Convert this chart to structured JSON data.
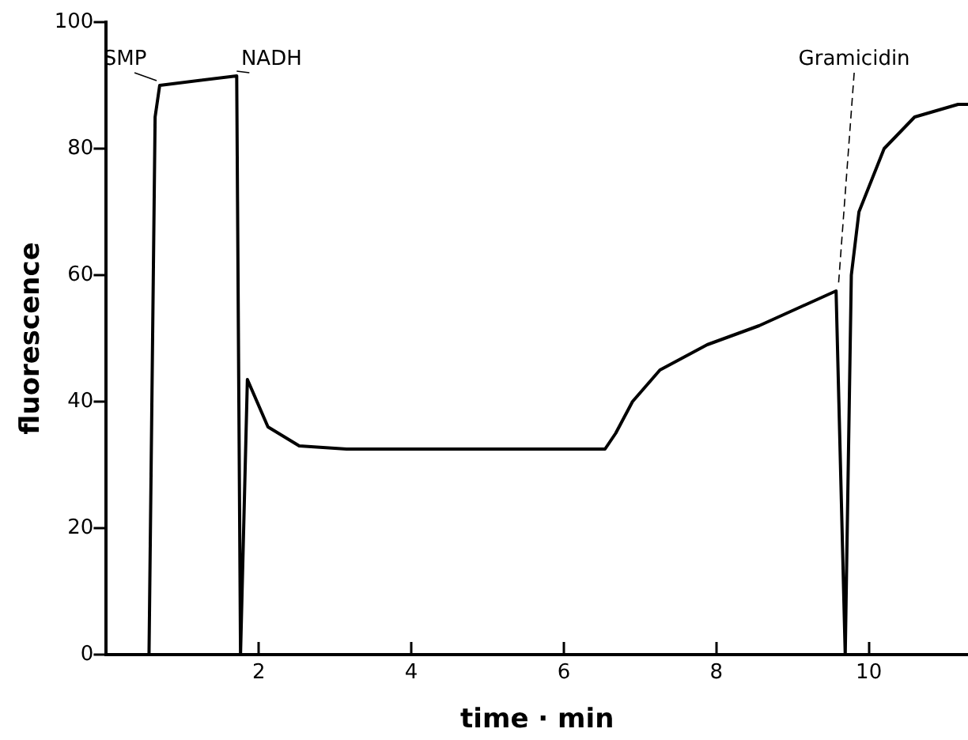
{
  "chart_data": {
    "type": "line",
    "xlabel": "time · min",
    "ylabel": "fluorescence",
    "x": [
      0.56,
      0.64,
      0.7,
      1.71,
      1.76,
      1.85,
      2.12,
      2.53,
      3.15,
      6.54,
      6.68,
      6.9,
      7.26,
      7.88,
      8.56,
      9.11,
      9.57,
      9.69,
      9.77,
      9.87,
      10.2,
      10.6,
      11.17,
      11.3
    ],
    "values": [
      0,
      85,
      90,
      91.5,
      0,
      43.5,
      36,
      33,
      32.5,
      32.5,
      35,
      40,
      45,
      49,
      52,
      55,
      57.5,
      0,
      60,
      70,
      80,
      85,
      87,
      87
    ],
    "color": "#000000",
    "xlim": [
      0,
      11.3
    ],
    "xticks": [
      2,
      4,
      6,
      8,
      10
    ],
    "ylim": [
      0,
      100
    ],
    "yticks": [
      0,
      20,
      40,
      60,
      80,
      100
    ],
    "annotations": [
      {
        "text": "SMP",
        "x": 0.66,
        "y": 90
      },
      {
        "text": "NADH",
        "x": 1.71,
        "y": 91.5
      },
      {
        "text": "Gramicidin",
        "x": 9.6,
        "y": 57.5
      }
    ],
    "grid": false,
    "legend": false,
    "marker": "none",
    "line_style": "solid"
  }
}
